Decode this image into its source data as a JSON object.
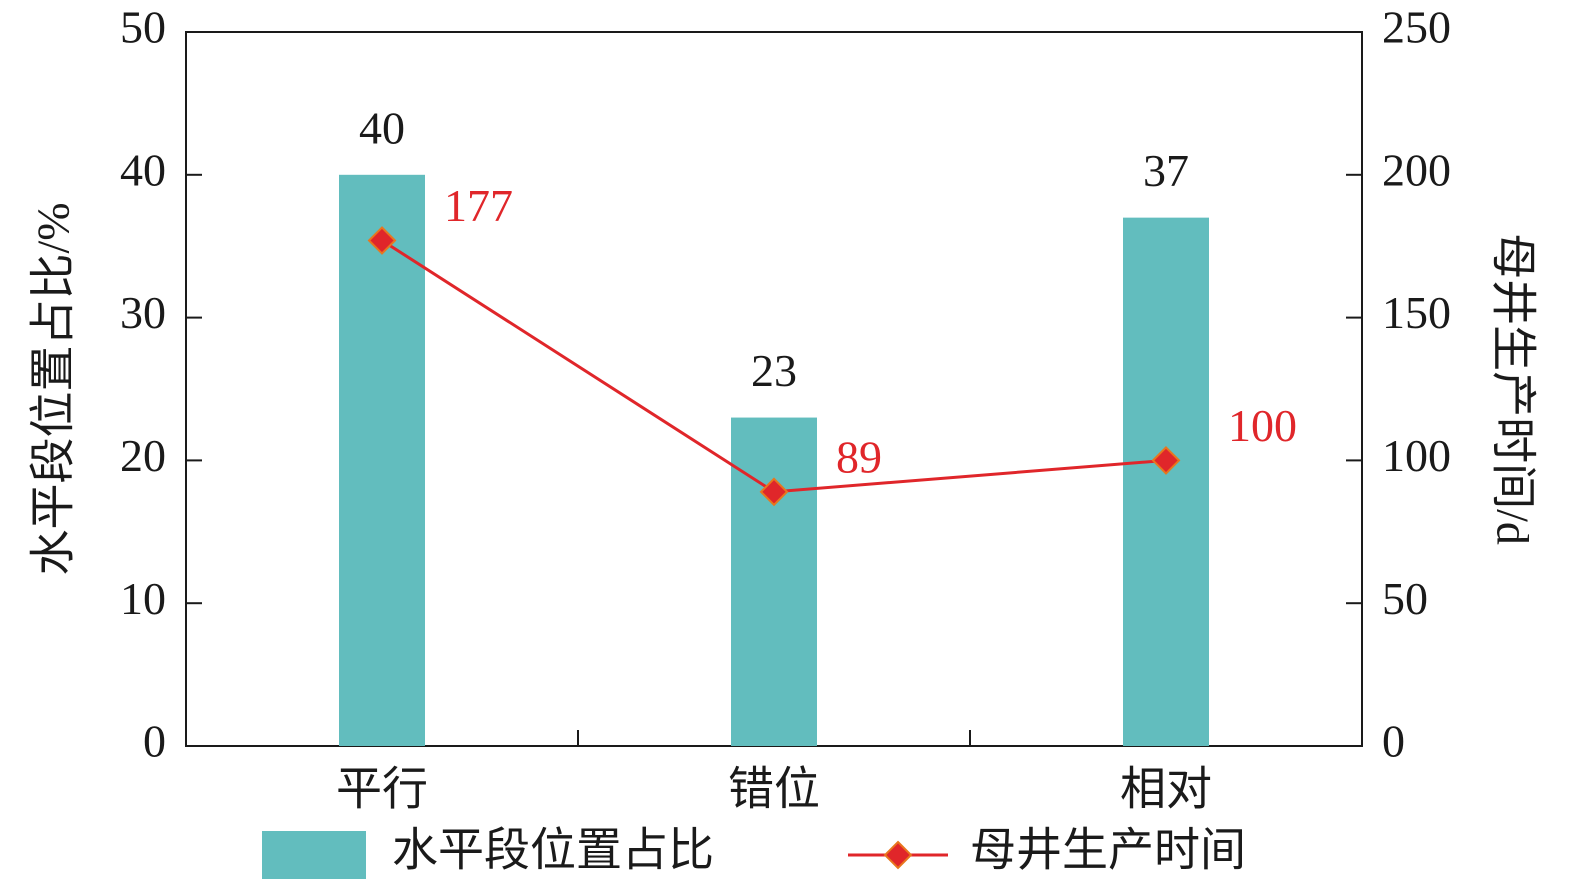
{
  "chart_data": {
    "type": "bar",
    "categories": [
      "平行",
      "错位",
      "相对"
    ],
    "series": [
      {
        "name": "水平段位置占比",
        "type": "bar",
        "color": "#62bdbe",
        "values": [
          40,
          23,
          37
        ]
      },
      {
        "name": "母井生产时间",
        "type": "line",
        "axis": "y2",
        "color": "#e0262a",
        "marker": "diamond",
        "values": [
          177,
          89,
          100
        ]
      }
    ],
    "ylabel": "水平段位置占比/%",
    "y2label": "母井生产时间/d",
    "ylim": [
      0,
      50
    ],
    "yticks": [
      0,
      10,
      20,
      30,
      40,
      50
    ],
    "y2lim": [
      0,
      250
    ],
    "y2ticks": [
      0,
      50,
      100,
      150,
      200,
      250
    ],
    "legend": "bottom"
  }
}
